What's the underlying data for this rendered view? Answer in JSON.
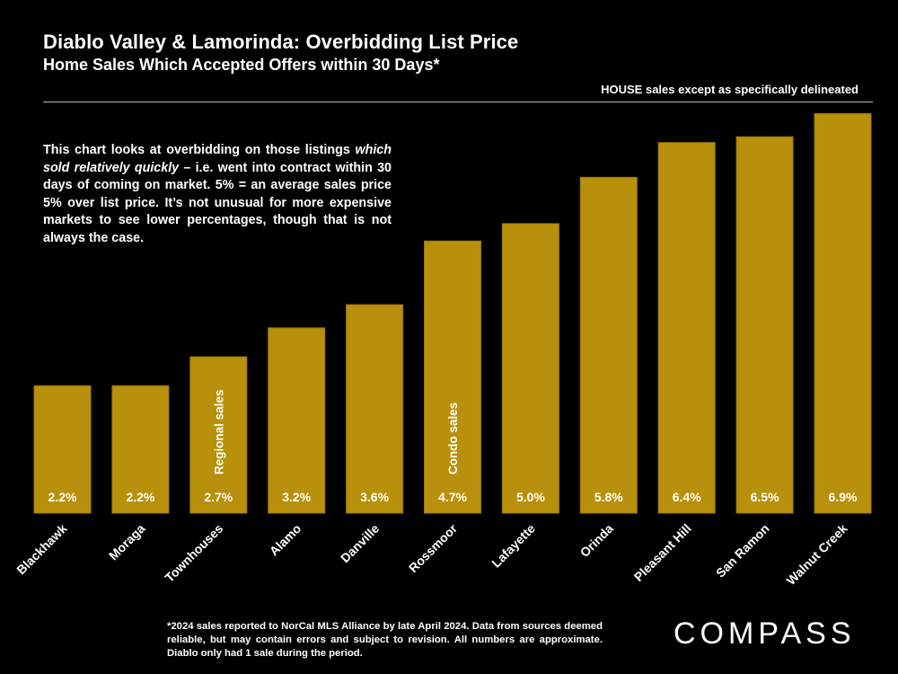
{
  "header": {
    "title": "Diablo Valley & Lamorinda:  Overbidding List Price",
    "subtitle": "Home Sales Which Accepted Offers within 30 Days*",
    "note_right": "HOUSE sales except as specifically delineated"
  },
  "explain": {
    "part1": "This chart looks at overbidding on those listings ",
    "part2_italic": "which sold relatively quickly",
    "part3": " – i.e. went into contract within 30 days of coming on market. 5% = an average sales price 5% over list price. It’s not unusual for more expensive markets to see lower percentages, though that is not always the case."
  },
  "footnote": "*2024 sales reported to NorCal MLS Alliance by late April 2024. Data from sources deemed reliable, but may contain errors and subject to revision. All numbers are approximate. Diablo only had 1 sale during the period.",
  "logo": "COMPASS",
  "colors": {
    "bar": "#b8900b",
    "bar_border": "#9a7806",
    "background": "#000000",
    "text": "#ffffff"
  },
  "chart_data": {
    "type": "bar",
    "title": "Diablo Valley & Lamorinda:  Overbidding List Price",
    "categories": [
      "Blackhawk",
      "Moraga",
      "Townhouses",
      "Alamo",
      "Danville",
      "Rossmoor",
      "Lafayette",
      "Orinda",
      "Pleasant Hill",
      "San Ramon",
      "Walnut Creek"
    ],
    "values": [
      2.2,
      2.2,
      2.7,
      3.2,
      3.6,
      4.7,
      5.0,
      5.8,
      6.4,
      6.5,
      6.9
    ],
    "value_labels": [
      "2.2%",
      "2.2%",
      "2.7%",
      "3.2%",
      "3.6%",
      "4.7%",
      "5.0%",
      "5.8%",
      "6.4%",
      "6.5%",
      "6.9%"
    ],
    "bar_annotations": [
      {
        "category": "Townhouses",
        "text": "Regional sales"
      },
      {
        "category": "Rossmoor",
        "text": "Condo sales"
      }
    ],
    "ylim": [
      0,
      7.0
    ],
    "xlabel": "",
    "ylabel": "",
    "grid": false
  }
}
